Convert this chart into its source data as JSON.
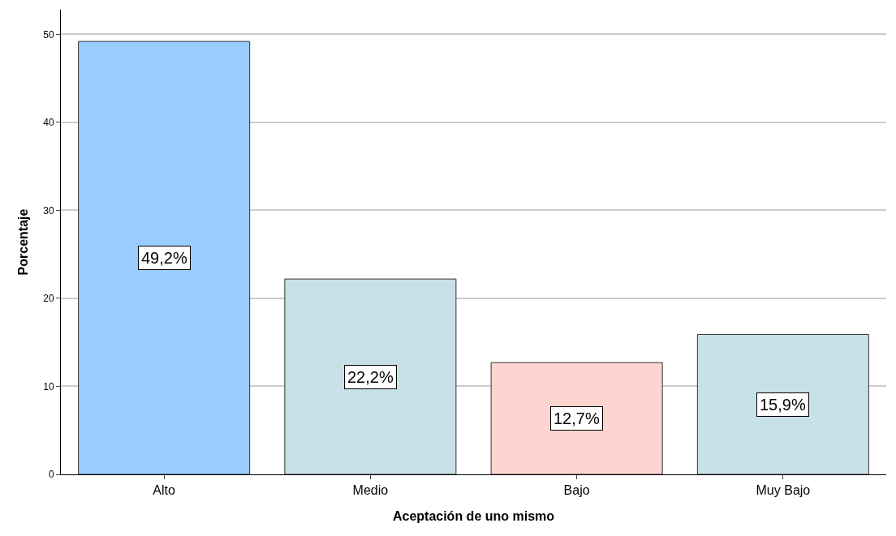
{
  "chart_data": {
    "type": "bar",
    "xlabel": "Aceptación de uno mismo",
    "ylabel": "Porcentaje",
    "categories": [
      "Alto",
      "Medio",
      "Bajo",
      "Muy Bajo"
    ],
    "values": [
      49.2,
      22.2,
      12.7,
      15.9
    ],
    "colors": [
      "#99ccff",
      "#c8e0e8",
      "#fdd5d0",
      "#c8e0e8"
    ],
    "value_labels": [
      "49,2%",
      "22,2%",
      "12,7%",
      "15,9%"
    ],
    "ylim": [
      0,
      52.8
    ],
    "yticks": [
      0,
      10,
      20,
      30,
      40,
      50
    ],
    "grid": "y"
  }
}
